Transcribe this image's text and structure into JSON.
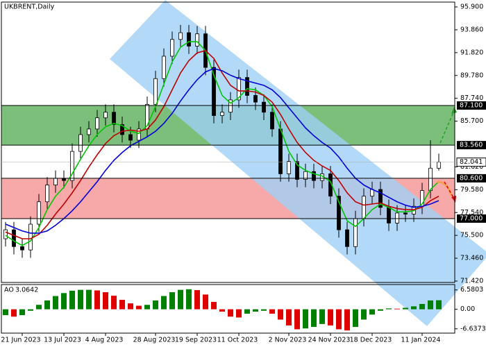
{
  "chart_data": [
    {
      "type": "candlestick",
      "title": "UKBRENT,Daily",
      "categories": [
        null,
        null,
        "21 Jun 2023",
        null,
        null,
        null,
        null,
        "13 Jul 2023",
        null,
        null,
        null,
        null,
        "4 Aug 2023",
        null,
        null,
        null,
        null,
        null,
        "28 Aug 2023",
        null,
        null,
        null,
        null,
        "19 Sep 2023",
        null,
        null,
        null,
        null,
        "11 Oct 2023",
        null,
        null,
        null,
        null,
        null,
        "2 Nov 2023",
        null,
        null,
        null,
        null,
        "24 Nov 2023",
        null,
        null,
        null,
        null,
        "18 Dec 2023",
        null,
        null,
        null,
        null,
        null,
        "11 Jan 2024",
        null,
        null
      ],
      "open": [
        75.2,
        76.0,
        74.5,
        74.2,
        76.5,
        78.5,
        80.0,
        80.6,
        80.4,
        83.0,
        84.5,
        85.0,
        86.0,
        86.5,
        85.4,
        84.5,
        84.0,
        85.0,
        87.2,
        89.5,
        91.5,
        93.0,
        93.6,
        92.4,
        93.5,
        90.5,
        86.2,
        86.5,
        87.6,
        89.6,
        88.0,
        87.4,
        86.5,
        85.0,
        81.0,
        82.1,
        80.5,
        81.2,
        80.4,
        81.0,
        79.0,
        76.0,
        74.5,
        77.0,
        79.0,
        79.6,
        78.0,
        76.6,
        77.5,
        77.4,
        78.1,
        79.5,
        81.5
      ],
      "high": [
        76.7,
        76.7,
        75.2,
        77.2,
        79.2,
        80.7,
        81.3,
        81.3,
        83.7,
        85.2,
        85.7,
        86.7,
        87.2,
        87.2,
        86.1,
        85.2,
        85.7,
        87.9,
        90.2,
        92.2,
        93.7,
        94.3,
        94.3,
        94.2,
        94.2,
        91.2,
        87.2,
        88.3,
        90.3,
        90.3,
        88.7,
        88.1,
        87.2,
        85.7,
        82.8,
        82.8,
        81.9,
        81.9,
        81.7,
        81.7,
        79.7,
        76.7,
        77.7,
        79.7,
        80.3,
        80.3,
        78.7,
        78.2,
        78.2,
        78.8,
        80.2,
        84.0,
        82.8
      ],
      "low": [
        74.5,
        73.8,
        73.5,
        73.5,
        75.8,
        77.8,
        79.3,
        79.7,
        79.7,
        82.3,
        83.8,
        84.3,
        85.3,
        84.7,
        83.8,
        83.3,
        83.3,
        84.3,
        86.5,
        88.8,
        90.8,
        92.3,
        91.7,
        91.7,
        89.8,
        85.5,
        85.5,
        85.8,
        86.9,
        87.3,
        86.7,
        85.8,
        84.3,
        80.3,
        80.3,
        79.8,
        79.8,
        79.7,
        79.7,
        78.3,
        75.3,
        73.8,
        73.8,
        76.3,
        78.3,
        77.3,
        75.9,
        75.9,
        76.7,
        76.7,
        77.4,
        78.8,
        81.3
      ],
      "close": [
        76.0,
        74.5,
        74.2,
        76.5,
        78.5,
        80.0,
        80.6,
        80.4,
        83.0,
        84.5,
        85.0,
        86.0,
        86.5,
        85.4,
        84.5,
        84.0,
        85.0,
        87.2,
        89.5,
        91.5,
        93.0,
        93.6,
        92.4,
        93.5,
        90.5,
        86.2,
        86.5,
        87.6,
        89.6,
        88.0,
        87.4,
        86.5,
        85.0,
        81.0,
        82.1,
        80.5,
        81.2,
        80.4,
        81.0,
        79.0,
        76.0,
        74.5,
        77.0,
        79.0,
        79.6,
        78.0,
        76.6,
        77.5,
        77.4,
        78.1,
        79.5,
        81.5,
        82.041
      ],
      "series": [
        {
          "color": "#00c800",
          "values": [
            75.5,
            75.0,
            74.6,
            75.0,
            76.2,
            77.8,
            79.0,
            79.8,
            81.0,
            82.3,
            83.5,
            84.5,
            85.2,
            85.5,
            85.3,
            84.8,
            84.6,
            85.3,
            87.0,
            89.0,
            91.0,
            92.3,
            92.8,
            92.8,
            92.0,
            89.8,
            88.0,
            87.3,
            87.8,
            88.6,
            88.5,
            88.0,
            87.0,
            85.0,
            83.0,
            81.8,
            81.3,
            81.0,
            80.8,
            80.3,
            78.5,
            76.8,
            76.3,
            77.0,
            77.8,
            78.3,
            78.0,
            77.6,
            77.6,
            77.7,
            78.3,
            79.6,
            80.3
          ]
        },
        {
          "color": "#c00000",
          "values": [
            75.8,
            75.5,
            75.2,
            75.2,
            75.6,
            76.4,
            77.4,
            78.3,
            79.3,
            80.4,
            81.6,
            82.7,
            83.7,
            84.4,
            84.8,
            84.9,
            84.8,
            85.0,
            85.8,
            87.0,
            88.5,
            90.0,
            91.1,
            91.8,
            92.0,
            91.3,
            90.0,
            88.9,
            88.4,
            88.4,
            88.3,
            88.0,
            87.4,
            86.3,
            85.0,
            83.8,
            82.9,
            82.2,
            81.7,
            81.3,
            80.4,
            79.3,
            78.5,
            78.2,
            78.3,
            78.4,
            78.1,
            77.9,
            77.8,
            77.8,
            78.0,
            78.6,
            79.0
          ]
        },
        {
          "color": "#0000dc",
          "values": [
            76.5,
            76.2,
            75.9,
            75.7,
            75.7,
            75.9,
            76.4,
            77.0,
            77.7,
            78.5,
            79.4,
            80.3,
            81.3,
            82.2,
            82.9,
            83.5,
            83.9,
            84.3,
            84.8,
            85.5,
            86.4,
            87.5,
            88.5,
            89.4,
            90.1,
            90.4,
            90.2,
            89.8,
            89.5,
            89.3,
            89.1,
            88.9,
            88.5,
            87.8,
            86.9,
            86.0,
            85.1,
            84.4,
            83.8,
            83.3,
            82.5,
            81.5,
            80.6,
            80.0,
            79.6,
            79.3,
            78.9,
            78.5,
            78.2,
            78.0,
            78.1,
            78.3,
            78.6
          ]
        }
      ],
      "levels": [
        {
          "value": 87.1,
          "label": "87.100"
        },
        {
          "value": 83.56,
          "label": "83.560"
        },
        {
          "value": 80.6,
          "label": "80.600"
        },
        {
          "value": 77.0,
          "label": "77.000"
        }
      ],
      "zones": [
        {
          "color": "#7bbf7b",
          "bounds": [
            0,
            1
          ]
        },
        {
          "color": "#f7a8a8",
          "bounds": [
            2,
            3
          ]
        }
      ],
      "ylim": [
        71.42,
        95.9
      ],
      "yticks": [
        {
          "value": 95.9,
          "label": "95.900"
        },
        {
          "value": 93.86,
          "label": "93.860"
        },
        {
          "value": 91.82,
          "label": "91.820"
        },
        {
          "value": 89.78,
          "label": "89.780"
        },
        {
          "value": 87.74,
          "label": "87.740"
        },
        {
          "value": 85.7,
          "label": "85.700"
        },
        {
          "value": 81.62,
          "label": "81.620"
        },
        {
          "value": 79.58,
          "label": "79.580"
        },
        {
          "value": 77.54,
          "label": "77.540"
        },
        {
          "value": 75.5,
          "label": "75.500"
        },
        {
          "value": 73.46,
          "label": "73.460"
        },
        {
          "value": 71.42,
          "label": "71.420"
        }
      ]
    },
    {
      "type": "bar",
      "title": "AO",
      "values": [
        -2,
        -2.5,
        -2,
        -0.5,
        1.5,
        3,
        4.5,
        5.5,
        6.3,
        6.6,
        6.6,
        6.4,
        5.8,
        4.6,
        3.2,
        2,
        1.2,
        1.5,
        3,
        4.5,
        5.8,
        6.6,
        6.8,
        6.5,
        5,
        2.5,
        -0.8,
        -2.5,
        -2.8,
        -1.5,
        -0.8,
        -0.5,
        -1.5,
        -3.5,
        -5.5,
        -6.8,
        -6.5,
        -6,
        -5,
        -5.5,
        -6.8,
        -7.2,
        -6,
        -3.5,
        -1.8,
        -0.5,
        0.3,
        0.2,
        0.5,
        1,
        1.8,
        3,
        3.0642
      ],
      "up_color": "#008000",
      "down_color": "#e00000",
      "ylim": [
        -8.1,
        8.4
      ],
      "yticks": [
        6.5803,
        {
          "value": 0,
          "label": "0.00"
        },
        -6.6373
      ]
    }
  ]
}
